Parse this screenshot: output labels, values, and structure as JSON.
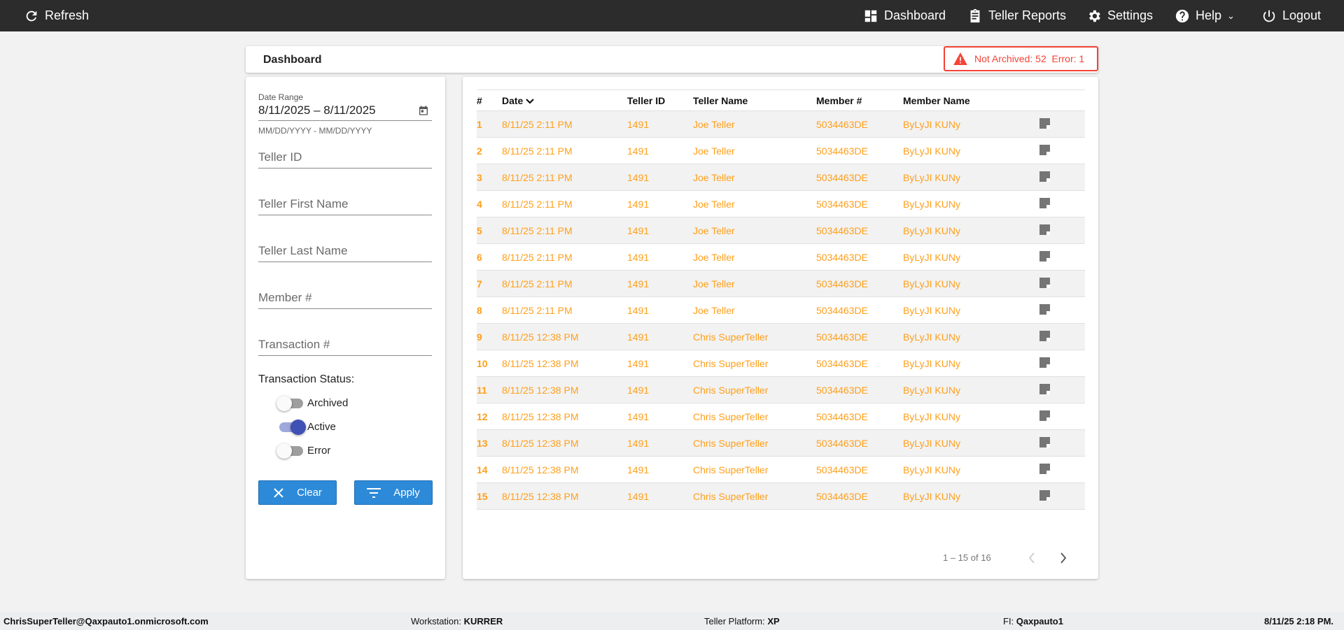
{
  "topbar": {
    "refresh": "Refresh",
    "items": [
      {
        "label": "Dashboard",
        "icon": "dashboard-icon"
      },
      {
        "label": "Teller Reports",
        "icon": "clipboard-icon"
      },
      {
        "label": "Settings",
        "icon": "gear-icon"
      },
      {
        "label": "Help",
        "icon": "help-icon"
      },
      {
        "label": "Logout",
        "icon": "power-icon"
      }
    ]
  },
  "header": {
    "title": "Dashboard",
    "alert": "Not Archived: 52  Error: 1",
    "alert_color": "#f44336"
  },
  "filters": {
    "date_label": "Date Range",
    "date_value": "8/11/2025 – 8/11/2025",
    "date_hint": "MM/DD/YYYY - MM/DD/YYYY",
    "teller_id": "Teller ID",
    "first_name": "Teller First Name",
    "last_name": "Teller Last Name",
    "member": "Member #",
    "transaction": "Transaction #",
    "status_label": "Transaction Status:",
    "toggles": [
      {
        "label": "Archived",
        "on": false
      },
      {
        "label": "Active",
        "on": true
      },
      {
        "label": "Error",
        "on": false
      }
    ],
    "clear": "Clear",
    "apply": "Apply"
  },
  "table": {
    "columns": [
      "#",
      "Date",
      "Teller ID",
      "Teller Name",
      "Member #",
      "Member Name"
    ],
    "rows": [
      [
        "1",
        "8/11/25 2:11 PM",
        "1491",
        "Joe Teller",
        "5034463DE",
        "ByLyJI KUNy"
      ],
      [
        "2",
        "8/11/25 2:11 PM",
        "1491",
        "Joe Teller",
        "5034463DE",
        "ByLyJI KUNy"
      ],
      [
        "3",
        "8/11/25 2:11 PM",
        "1491",
        "Joe Teller",
        "5034463DE",
        "ByLyJI KUNy"
      ],
      [
        "4",
        "8/11/25 2:11 PM",
        "1491",
        "Joe Teller",
        "5034463DE",
        "ByLyJI KUNy"
      ],
      [
        "5",
        "8/11/25 2:11 PM",
        "1491",
        "Joe Teller",
        "5034463DE",
        "ByLyJI KUNy"
      ],
      [
        "6",
        "8/11/25 2:11 PM",
        "1491",
        "Joe Teller",
        "5034463DE",
        "ByLyJI KUNy"
      ],
      [
        "7",
        "8/11/25 2:11 PM",
        "1491",
        "Joe Teller",
        "5034463DE",
        "ByLyJI KUNy"
      ],
      [
        "8",
        "8/11/25 2:11 PM",
        "1491",
        "Joe Teller",
        "5034463DE",
        "ByLyJI KUNy"
      ],
      [
        "9",
        "8/11/25 12:38 PM",
        "1491",
        "Chris SuperTeller",
        "5034463DE",
        "ByLyJI KUNy"
      ],
      [
        "10",
        "8/11/25 12:38 PM",
        "1491",
        "Chris SuperTeller",
        "5034463DE",
        "ByLyJI KUNy"
      ],
      [
        "11",
        "8/11/25 12:38 PM",
        "1491",
        "Chris SuperTeller",
        "5034463DE",
        "ByLyJI KUNy"
      ],
      [
        "12",
        "8/11/25 12:38 PM",
        "1491",
        "Chris SuperTeller",
        "5034463DE",
        "ByLyJI KUNy"
      ],
      [
        "13",
        "8/11/25 12:38 PM",
        "1491",
        "Chris SuperTeller",
        "5034463DE",
        "ByLyJI KUNy"
      ],
      [
        "14",
        "8/11/25 12:38 PM",
        "1491",
        "Chris SuperTeller",
        "5034463DE",
        "ByLyJI KUNy"
      ],
      [
        "15",
        "8/11/25 12:38 PM",
        "1491",
        "Chris SuperTeller",
        "5034463DE",
        "ByLyJI KUNy"
      ]
    ],
    "row_color": "#ff9f1a",
    "pagination": "1 – 15 of 16"
  },
  "footer": {
    "user": "ChrisSuperTeller@Qaxpauto1.onmicrosoft.com",
    "workstation_label": "Workstation:",
    "workstation": "KURRER",
    "platform_label": "Teller Platform:",
    "platform": "XP",
    "fi_label": "FI:",
    "fi": "Qaxpauto1",
    "datetime": "8/11/25 2:18 PM."
  }
}
